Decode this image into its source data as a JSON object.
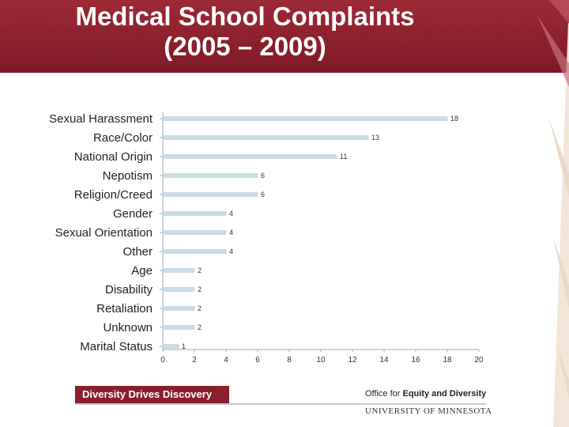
{
  "slide": {
    "title_line1": "Medical School Complaints",
    "title_line2": "(2005 – 2009)"
  },
  "footer": {
    "slogan": "Diversity Drives Discovery",
    "office_prefix": "Office for ",
    "office_bold": "Equity and Diversity",
    "university": "UNIVERSITY OF MINNESOTA"
  },
  "colors": {
    "header": "#8b1f2c",
    "bar": "#c9dde4",
    "bar_edge": "#aecbd5"
  },
  "chart_data": {
    "type": "bar",
    "orientation": "horizontal",
    "categories": [
      "Sexual Harassment",
      "Race/Color",
      "National Origin",
      "Nepotism",
      "Religion/Creed",
      "Gender",
      "Sexual Orientation",
      "Other",
      "Age",
      "Disability",
      "Retaliation",
      "Unknown",
      "Marital Status"
    ],
    "values": [
      18,
      13,
      11,
      6,
      6,
      4,
      4,
      4,
      2,
      2,
      2,
      2,
      1
    ],
    "xlim": [
      0,
      20
    ],
    "xticks": [
      0,
      2,
      4,
      6,
      8,
      10,
      12,
      14,
      16,
      18,
      20
    ],
    "data_labels": true,
    "grid": false,
    "legend": "none"
  }
}
